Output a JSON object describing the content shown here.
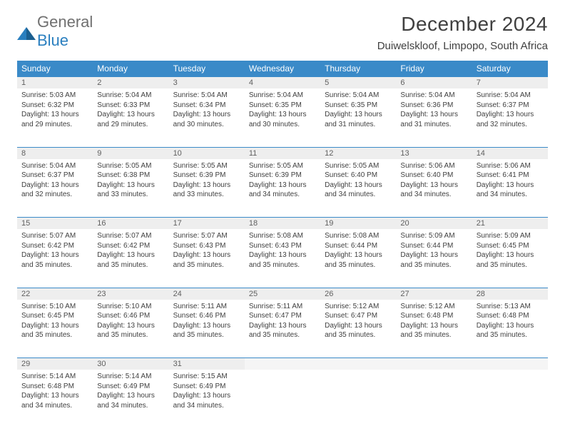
{
  "brand": {
    "part1": "General",
    "part2": "Blue"
  },
  "title": "December 2024",
  "location": "Duiwelskloof, Limpopo, South Africa",
  "colors": {
    "header_bg": "#3a8ac8",
    "header_fg": "#ffffff",
    "daynum_bg": "#eeeeee",
    "border": "#3a8ac8",
    "text": "#404040",
    "brand_gray": "#707070",
    "brand_blue": "#2a7fbf"
  },
  "weekdays": [
    "Sunday",
    "Monday",
    "Tuesday",
    "Wednesday",
    "Thursday",
    "Friday",
    "Saturday"
  ],
  "weeks": [
    [
      {
        "n": "1",
        "sr": "5:03 AM",
        "ss": "6:32 PM",
        "dl": "13 hours and 29 minutes."
      },
      {
        "n": "2",
        "sr": "5:04 AM",
        "ss": "6:33 PM",
        "dl": "13 hours and 29 minutes."
      },
      {
        "n": "3",
        "sr": "5:04 AM",
        "ss": "6:34 PM",
        "dl": "13 hours and 30 minutes."
      },
      {
        "n": "4",
        "sr": "5:04 AM",
        "ss": "6:35 PM",
        "dl": "13 hours and 30 minutes."
      },
      {
        "n": "5",
        "sr": "5:04 AM",
        "ss": "6:35 PM",
        "dl": "13 hours and 31 minutes."
      },
      {
        "n": "6",
        "sr": "5:04 AM",
        "ss": "6:36 PM",
        "dl": "13 hours and 31 minutes."
      },
      {
        "n": "7",
        "sr": "5:04 AM",
        "ss": "6:37 PM",
        "dl": "13 hours and 32 minutes."
      }
    ],
    [
      {
        "n": "8",
        "sr": "5:04 AM",
        "ss": "6:37 PM",
        "dl": "13 hours and 32 minutes."
      },
      {
        "n": "9",
        "sr": "5:05 AM",
        "ss": "6:38 PM",
        "dl": "13 hours and 33 minutes."
      },
      {
        "n": "10",
        "sr": "5:05 AM",
        "ss": "6:39 PM",
        "dl": "13 hours and 33 minutes."
      },
      {
        "n": "11",
        "sr": "5:05 AM",
        "ss": "6:39 PM",
        "dl": "13 hours and 34 minutes."
      },
      {
        "n": "12",
        "sr": "5:05 AM",
        "ss": "6:40 PM",
        "dl": "13 hours and 34 minutes."
      },
      {
        "n": "13",
        "sr": "5:06 AM",
        "ss": "6:40 PM",
        "dl": "13 hours and 34 minutes."
      },
      {
        "n": "14",
        "sr": "5:06 AM",
        "ss": "6:41 PM",
        "dl": "13 hours and 34 minutes."
      }
    ],
    [
      {
        "n": "15",
        "sr": "5:07 AM",
        "ss": "6:42 PM",
        "dl": "13 hours and 35 minutes."
      },
      {
        "n": "16",
        "sr": "5:07 AM",
        "ss": "6:42 PM",
        "dl": "13 hours and 35 minutes."
      },
      {
        "n": "17",
        "sr": "5:07 AM",
        "ss": "6:43 PM",
        "dl": "13 hours and 35 minutes."
      },
      {
        "n": "18",
        "sr": "5:08 AM",
        "ss": "6:43 PM",
        "dl": "13 hours and 35 minutes."
      },
      {
        "n": "19",
        "sr": "5:08 AM",
        "ss": "6:44 PM",
        "dl": "13 hours and 35 minutes."
      },
      {
        "n": "20",
        "sr": "5:09 AM",
        "ss": "6:44 PM",
        "dl": "13 hours and 35 minutes."
      },
      {
        "n": "21",
        "sr": "5:09 AM",
        "ss": "6:45 PM",
        "dl": "13 hours and 35 minutes."
      }
    ],
    [
      {
        "n": "22",
        "sr": "5:10 AM",
        "ss": "6:45 PM",
        "dl": "13 hours and 35 minutes."
      },
      {
        "n": "23",
        "sr": "5:10 AM",
        "ss": "6:46 PM",
        "dl": "13 hours and 35 minutes."
      },
      {
        "n": "24",
        "sr": "5:11 AM",
        "ss": "6:46 PM",
        "dl": "13 hours and 35 minutes."
      },
      {
        "n": "25",
        "sr": "5:11 AM",
        "ss": "6:47 PM",
        "dl": "13 hours and 35 minutes."
      },
      {
        "n": "26",
        "sr": "5:12 AM",
        "ss": "6:47 PM",
        "dl": "13 hours and 35 minutes."
      },
      {
        "n": "27",
        "sr": "5:12 AM",
        "ss": "6:48 PM",
        "dl": "13 hours and 35 minutes."
      },
      {
        "n": "28",
        "sr": "5:13 AM",
        "ss": "6:48 PM",
        "dl": "13 hours and 35 minutes."
      }
    ],
    [
      {
        "n": "29",
        "sr": "5:14 AM",
        "ss": "6:48 PM",
        "dl": "13 hours and 34 minutes."
      },
      {
        "n": "30",
        "sr": "5:14 AM",
        "ss": "6:49 PM",
        "dl": "13 hours and 34 minutes."
      },
      {
        "n": "31",
        "sr": "5:15 AM",
        "ss": "6:49 PM",
        "dl": "13 hours and 34 minutes."
      },
      null,
      null,
      null,
      null
    ]
  ],
  "labels": {
    "sunrise": "Sunrise: ",
    "sunset": "Sunset: ",
    "daylight": "Daylight: "
  }
}
